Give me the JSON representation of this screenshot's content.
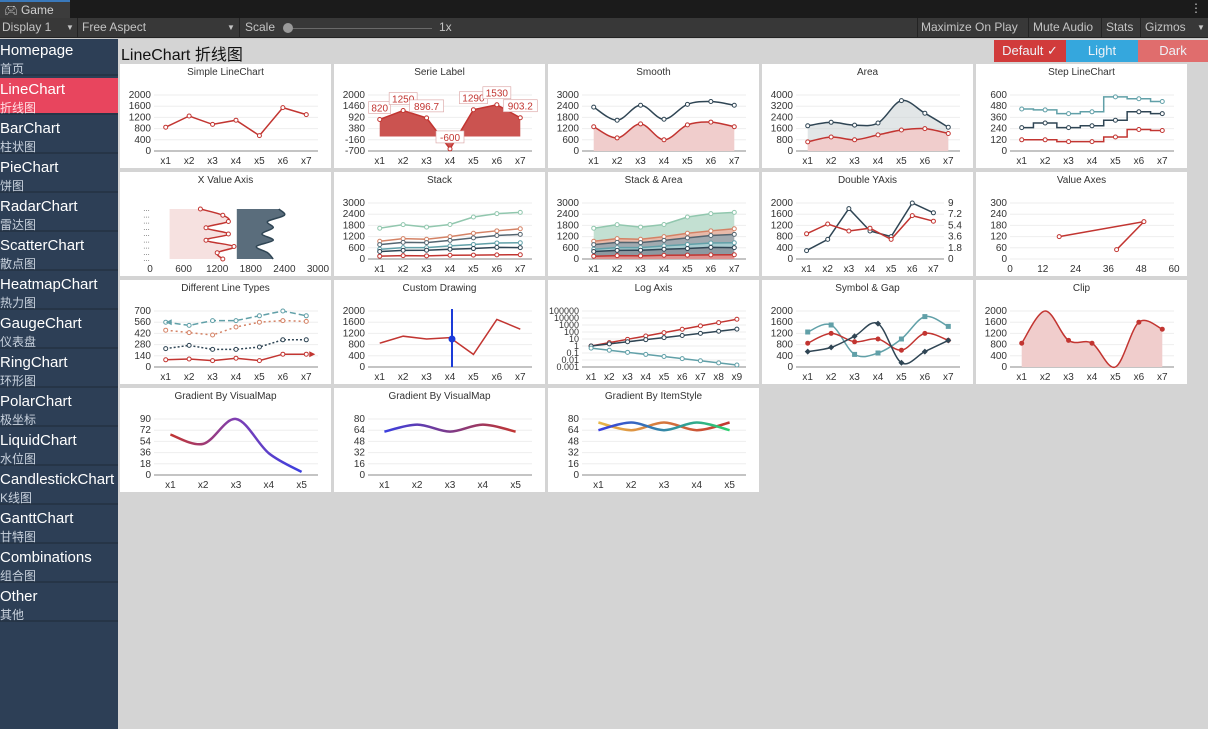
{
  "window": {
    "tab_label": "Game",
    "tab_icon": "gamepad-icon",
    "menu_icon": "kebab-menu-icon"
  },
  "toolbar": {
    "display": "Display 1",
    "aspect": "Free Aspect",
    "scale_label": "Scale",
    "scale_value": "1x",
    "maximize": "Maximize On Play",
    "mute": "Mute Audio",
    "stats": "Stats",
    "gizmos": "Gizmos"
  },
  "sidebar": {
    "items": [
      {
        "en": "Homepage",
        "cn": "首页"
      },
      {
        "en": "LineChart",
        "cn": "折线图",
        "active": true
      },
      {
        "en": "BarChart",
        "cn": "柱状图"
      },
      {
        "en": "PieChart",
        "cn": "饼图"
      },
      {
        "en": "RadarChart",
        "cn": "雷达图"
      },
      {
        "en": "ScatterChart",
        "cn": "散点图"
      },
      {
        "en": "HeatmapChart",
        "cn": "热力图"
      },
      {
        "en": "GaugeChart",
        "cn": "仪表盘"
      },
      {
        "en": "RingChart",
        "cn": "环形图"
      },
      {
        "en": "PolarChart",
        "cn": "极坐标"
      },
      {
        "en": "LiquidChart",
        "cn": "水位图"
      },
      {
        "en": "CandlestickChart",
        "cn": "K线图"
      },
      {
        "en": "GanttChart",
        "cn": "甘特图"
      },
      {
        "en": "Combinations",
        "cn": "组合图"
      },
      {
        "en": "Other",
        "cn": "其他"
      }
    ]
  },
  "header": {
    "title": "LineChart 折线图",
    "themes": [
      {
        "label": "Default ✓",
        "color": "#d13b3b"
      },
      {
        "label": "Light",
        "color": "#35a7dd"
      },
      {
        "label": "Dark",
        "color": "#e06d6d"
      }
    ]
  },
  "chart_data": [
    {
      "title": "Simple LineChart",
      "type": "line",
      "categories": [
        "x1",
        "x2",
        "x3",
        "x4",
        "x5",
        "x6",
        "x7"
      ],
      "yticks": [
        "0",
        "400",
        "800",
        "1200",
        "1600",
        "2000"
      ],
      "ylim": [
        0,
        2000
      ],
      "series": [
        {
          "values": [
            850,
            1250,
            950,
            1100,
            550,
            1550,
            1300
          ],
          "color": "#c23531"
        }
      ]
    },
    {
      "title": "Serie Label",
      "type": "area",
      "categories": [
        "x1",
        "x2",
        "x3",
        "x4",
        "x5",
        "x6",
        "x7"
      ],
      "yticks": [
        "-700",
        "-160",
        "380",
        "920",
        "1460",
        "2000"
      ],
      "ylim": [
        -700,
        2000
      ],
      "labels": [
        "820",
        "1250",
        "896.7",
        "-600",
        "1290",
        "1530",
        "903.2"
      ],
      "series": [
        {
          "values": [
            820,
            1250,
            896.7,
            -600,
            1290,
            1530,
            903.2
          ],
          "color": "#c23531"
        }
      ]
    },
    {
      "title": "Smooth",
      "type": "line",
      "smooth": true,
      "categories": [
        "x1",
        "x2",
        "x3",
        "x4",
        "x5",
        "x6",
        "x7"
      ],
      "yticks": [
        "0",
        "600",
        "1200",
        "1800",
        "2400",
        "3000"
      ],
      "ylim": [
        0,
        3000
      ],
      "series": [
        {
          "values": [
            2350,
            1650,
            2450,
            1700,
            2500,
            2650,
            2450
          ],
          "color": "#2f4554"
        },
        {
          "values": [
            1300,
            700,
            1450,
            600,
            1400,
            1550,
            1300
          ],
          "color": "#c23531",
          "area": true
        }
      ]
    },
    {
      "title": "Area",
      "type": "area",
      "smooth": true,
      "categories": [
        "x1",
        "x2",
        "x3",
        "x4",
        "x5",
        "x6",
        "x7"
      ],
      "yticks": [
        "0",
        "800",
        "1600",
        "2400",
        "3200",
        "4000"
      ],
      "ylim": [
        0,
        4000
      ],
      "series": [
        {
          "values": [
            1800,
            2050,
            1850,
            2000,
            3600,
            2700,
            1700
          ],
          "color": "#2f4554"
        },
        {
          "values": [
            650,
            1000,
            800,
            1150,
            1500,
            1600,
            1250
          ],
          "color": "#c23531"
        }
      ]
    },
    {
      "title": "Step LineChart",
      "type": "line",
      "step": true,
      "categories": [
        "x1",
        "x2",
        "x3",
        "x4",
        "x5",
        "x6",
        "x7"
      ],
      "yticks": [
        "0",
        "120",
        "240",
        "360",
        "480",
        "600"
      ],
      "ylim": [
        0,
        600
      ],
      "series": [
        {
          "values": [
            450,
            440,
            400,
            420,
            580,
            560,
            530
          ],
          "color": "#61a0a8"
        },
        {
          "values": [
            250,
            300,
            250,
            270,
            330,
            420,
            400
          ],
          "color": "#2f4554"
        },
        {
          "values": [
            120,
            120,
            100,
            100,
            150,
            230,
            220
          ],
          "color": "#c23531"
        }
      ]
    },
    {
      "title": "X Value Axis",
      "type": "area",
      "horizontal": true,
      "xticks": [
        "0",
        "600",
        "1200",
        "1800",
        "2400",
        "3000"
      ],
      "xlim": [
        0,
        3000
      ],
      "series": [
        {
          "values": [
            2300,
            2400,
            2100,
            2200,
            2000,
            2200,
            1900,
            2100,
            2200
          ],
          "color": "#2f4554"
        },
        {
          "values": [
            900,
            1300,
            1400,
            1000,
            1400,
            1000,
            1500,
            1200,
            1300
          ],
          "color": "#c23531"
        }
      ]
    },
    {
      "title": "Stack",
      "type": "line",
      "stack": true,
      "categories": [
        "x1",
        "x2",
        "x3",
        "x4",
        "x5",
        "x6",
        "x7"
      ],
      "yticks": [
        "0",
        "600",
        "1200",
        "1800",
        "2400",
        "3000"
      ],
      "ylim": [
        0,
        3000
      ],
      "series": [
        {
          "values": [
            150,
            180,
            170,
            200,
            210,
            220,
            230
          ],
          "color": "#c23531"
        },
        {
          "values": [
            250,
            280,
            300,
            320,
            350,
            400,
            380
          ],
          "color": "#2f4554"
        },
        {
          "values": [
            120,
            150,
            140,
            180,
            220,
            240,
            260
          ],
          "color": "#61a0a8"
        },
        {
          "values": [
            250,
            280,
            270,
            300,
            350,
            400,
            450
          ],
          "color": "#546570"
        },
        {
          "values": [
            180,
            200,
            180,
            200,
            250,
            250,
            300
          ],
          "color": "#d48265"
        },
        {
          "values": [
            700,
            750,
            650,
            650,
            870,
            920,
            880
          ],
          "color": "#91c7ae"
        }
      ]
    },
    {
      "title": "Stack & Area",
      "type": "area",
      "stack": true,
      "categories": [
        "x1",
        "x2",
        "x3",
        "x4",
        "x5",
        "x6",
        "x7"
      ],
      "yticks": [
        "0",
        "600",
        "1200",
        "1800",
        "2400",
        "3000"
      ],
      "ylim": [
        0,
        3000
      ],
      "series": [
        {
          "values": [
            150,
            180,
            170,
            200,
            210,
            220,
            230
          ],
          "color": "#c23531"
        },
        {
          "values": [
            250,
            280,
            300,
            320,
            350,
            400,
            380
          ],
          "color": "#2f4554"
        },
        {
          "values": [
            120,
            150,
            140,
            180,
            220,
            240,
            260
          ],
          "color": "#61a0a8"
        },
        {
          "values": [
            250,
            280,
            270,
            300,
            350,
            400,
            450
          ],
          "color": "#546570"
        },
        {
          "values": [
            180,
            200,
            180,
            200,
            250,
            250,
            300
          ],
          "color": "#d48265"
        },
        {
          "values": [
            700,
            750,
            650,
            650,
            870,
            920,
            880
          ],
          "color": "#91c7ae"
        }
      ]
    },
    {
      "title": "Double YAxis",
      "type": "line",
      "categories": [
        "x1",
        "x2",
        "x3",
        "x4",
        "x5",
        "x6",
        "x7"
      ],
      "yticks": [
        "0",
        "400",
        "800",
        "1200",
        "1600",
        "2000"
      ],
      "ylim": [
        0,
        2000
      ],
      "y2ticks": [
        "0",
        "1.8",
        "3.6",
        "5.4",
        "7.2",
        "9"
      ],
      "series": [
        {
          "values": [
            300,
            700,
            1800,
            1000,
            800,
            2000,
            1650
          ],
          "color": "#2f4554"
        },
        {
          "values": [
            900,
            1250,
            1000,
            1100,
            700,
            1550,
            1350
          ],
          "color": "#c23531"
        }
      ]
    },
    {
      "title": "Value Axes",
      "type": "scatter-line",
      "xticks": [
        "0",
        "12",
        "24",
        "36",
        "48",
        "60"
      ],
      "xlim": [
        0,
        60
      ],
      "yticks": [
        "0",
        "60",
        "120",
        "180",
        "240",
        "300"
      ],
      "ylim": [
        0,
        300
      ],
      "series": [
        {
          "points": [
            [
              18,
              120
            ],
            [
              49,
              200
            ],
            [
              39,
              50
            ]
          ],
          "color": "#c23531"
        }
      ]
    },
    {
      "title": "Different Line Types",
      "type": "line",
      "categories": [
        "x1",
        "x2",
        "x3",
        "x4",
        "x5",
        "x6",
        "x7"
      ],
      "yticks": [
        "0",
        "140",
        "280",
        "420",
        "560",
        "700"
      ],
      "ylim": [
        0,
        700
      ],
      "series": [
        {
          "values": [
            560,
            520,
            580,
            580,
            640,
            700,
            640
          ],
          "color": "#61a0a8"
        },
        {
          "values": [
            460,
            430,
            400,
            500,
            560,
            580,
            570
          ],
          "color": "#d48265"
        },
        {
          "values": [
            230,
            270,
            220,
            220,
            250,
            340,
            340
          ],
          "color": "#2f4554"
        },
        {
          "values": [
            90,
            100,
            80,
            110,
            80,
            160,
            160
          ],
          "color": "#c23531"
        }
      ]
    },
    {
      "title": "Custom Drawing",
      "type": "line",
      "categories": [
        "x1",
        "x2",
        "x3",
        "x4",
        "x5",
        "x6",
        "x7"
      ],
      "yticks": [
        "0",
        "400",
        "800",
        "1200",
        "1600",
        "2000"
      ],
      "ylim": [
        0,
        2000
      ],
      "series": [
        {
          "values": [
            850,
            1100,
            1000,
            1050,
            450,
            1700,
            1350
          ],
          "color": "#c23531"
        }
      ]
    },
    {
      "title": "Log Axis",
      "type": "line",
      "log": true,
      "categories": [
        "x1",
        "x2",
        "x3",
        "x4",
        "x5",
        "x6",
        "x7",
        "x8",
        "x9"
      ],
      "yticks": [
        "0.001",
        "0.01",
        "0.1",
        "1",
        "10",
        "100",
        "1000",
        "10000",
        "100000"
      ],
      "ylim": [
        0.001,
        100000
      ],
      "series": [
        {
          "values": [
            1,
            3,
            9,
            27,
            81,
            247,
            741,
            2223,
            6669
          ],
          "color": "#c23531"
        },
        {
          "values": [
            1,
            2,
            4,
            8,
            16,
            32,
            64,
            128,
            256
          ],
          "color": "#2f4554"
        },
        {
          "values": [
            0.5,
            0.25,
            0.125,
            0.0625,
            0.03125,
            0.015625,
            0.0078125,
            0.00390625,
            0.001953125
          ],
          "color": "#61a0a8"
        }
      ]
    },
    {
      "title": "Symbol & Gap",
      "type": "line",
      "smooth": true,
      "categories": [
        "x1",
        "x2",
        "x3",
        "x4",
        "x5",
        "x6",
        "x7"
      ],
      "yticks": [
        "0",
        "400",
        "800",
        "1200",
        "1600",
        "2000"
      ],
      "ylim": [
        0,
        2000
      ],
      "series": [
        {
          "values": [
            1250,
            1500,
            450,
            500,
            1000,
            1800,
            1450
          ],
          "color": "#61a0a8"
        },
        {
          "values": [
            850,
            1200,
            900,
            1000,
            600,
            1200,
            950
          ],
          "color": "#c23531"
        },
        {
          "values": [
            550,
            700,
            1100,
            1550,
            150,
            550,
            950
          ],
          "color": "#2f4554"
        }
      ]
    },
    {
      "title": "Clip",
      "type": "area",
      "smooth": true,
      "categories": [
        "x1",
        "x2",
        "x3",
        "x4",
        "x5",
        "x6",
        "x7"
      ],
      "yticks": [
        "0",
        "400",
        "800",
        "1200",
        "1600",
        "2000"
      ],
      "ylim": [
        0,
        2000
      ],
      "series": [
        {
          "values": [
            850,
            2300,
            950,
            850,
            -200,
            1600,
            1350
          ],
          "color": "#c23531"
        }
      ]
    },
    {
      "title": "Gradient By VisualMap",
      "type": "line",
      "smooth": true,
      "categories": [
        "x1",
        "x2",
        "x3",
        "x4",
        "x5"
      ],
      "yticks": [
        "0",
        "18",
        "36",
        "54",
        "72",
        "90"
      ],
      "ylim": [
        0,
        90
      ],
      "series": [
        {
          "values": [
            65,
            50,
            90,
            35,
            5
          ],
          "gradient": [
            "#c23531",
            "#7e3fb3",
            "#3a3fe0"
          ]
        }
      ]
    },
    {
      "title": "Gradient By VisualMap",
      "type": "line",
      "smooth": true,
      "categories": [
        "x1",
        "x2",
        "x3",
        "x4",
        "x5"
      ],
      "yticks": [
        "0",
        "16",
        "32",
        "48",
        "64",
        "80"
      ],
      "ylim": [
        0,
        80
      ],
      "series": [
        {
          "values": [
            62,
            72,
            62,
            72,
            62
          ],
          "gradient": [
            "#3a3fe0",
            "#c23531"
          ]
        }
      ]
    },
    {
      "title": "Gradient By ItemStyle",
      "type": "line",
      "smooth": true,
      "categories": [
        "x1",
        "x2",
        "x3",
        "x4",
        "x5"
      ],
      "yticks": [
        "0",
        "16",
        "32",
        "48",
        "64",
        "80"
      ],
      "ylim": [
        0,
        80
      ],
      "series": [
        {
          "values": [
            75,
            64,
            75,
            64,
            75
          ],
          "gradient": [
            "#e8b84a",
            "#c23531"
          ]
        },
        {
          "values": [
            64,
            75,
            64,
            75,
            64
          ],
          "gradient": [
            "#3a3fe0",
            "#2dd16e"
          ]
        }
      ]
    }
  ]
}
